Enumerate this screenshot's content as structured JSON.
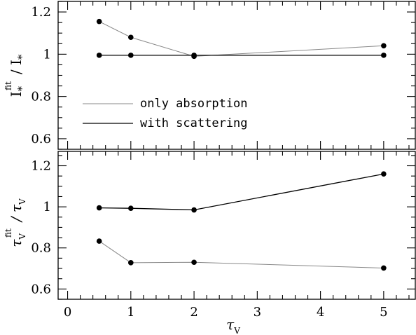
{
  "chart_data": [
    {
      "type": "line",
      "panel": "top",
      "ylabel": "I* fit / I*",
      "xlim": [
        -0.15,
        5.5
      ],
      "ylim": [
        0.55,
        1.25
      ],
      "yticks": [
        0.6,
        0.8,
        1,
        1.2
      ],
      "ytick_labels": [
        "0.6",
        "0.8",
        "1",
        "1.2"
      ],
      "x": [
        0.5,
        1,
        2,
        5
      ],
      "series": [
        {
          "name": "only absorption",
          "values": [
            1.155,
            1.08,
            0.99,
            1.04
          ],
          "color": "#888888"
        },
        {
          "name": "with scattering",
          "values": [
            0.995,
            0.995,
            0.995,
            0.995
          ],
          "color": "#000000"
        }
      ],
      "legend": "lower-left"
    },
    {
      "type": "line",
      "panel": "bottom",
      "ylabel": "τV fit / τV",
      "xlabel": "τV",
      "xlim": [
        -0.15,
        5.5
      ],
      "ylim": [
        0.55,
        1.27
      ],
      "xticks": [
        0,
        1,
        2,
        3,
        4,
        5
      ],
      "xtick_labels": [
        "0",
        "1",
        "2",
        "3",
        "4",
        "5"
      ],
      "yticks": [
        0.6,
        0.8,
        1,
        1.2
      ],
      "ytick_labels": [
        "0.6",
        "0.8",
        "1",
        "1.2"
      ],
      "x": [
        0.5,
        1,
        2,
        5
      ],
      "series": [
        {
          "name": "only absorption",
          "values": [
            0.833,
            0.728,
            0.73,
            0.702
          ],
          "color": "#888888"
        },
        {
          "name": "with scattering",
          "values": [
            0.995,
            0.993,
            0.985,
            1.16
          ],
          "color": "#000000"
        }
      ]
    }
  ],
  "axis_text": {
    "top_ylabel_main": "I",
    "top_ylabel_star": "*",
    "top_ylabel_fit": "fit",
    "top_ylabel_denom": "/ I",
    "top_ylabel_denom_star": "*",
    "bottom_ylabel_main": "τ",
    "bottom_ylabel_sub": "V",
    "bottom_ylabel_fit": "fit",
    "bottom_ylabel_denom": "/ τ",
    "bottom_ylabel_denom_sub": "V",
    "xlabel_main": "τ",
    "xlabel_sub": "V"
  },
  "legend": {
    "absorption_label": "only absorption",
    "scattering_label": "with scattering"
  }
}
